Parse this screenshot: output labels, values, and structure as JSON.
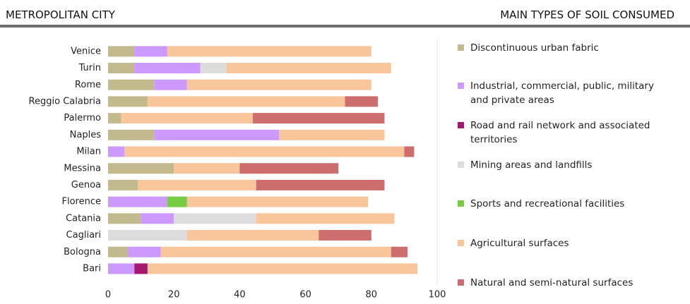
{
  "header": {
    "left": "METROPOLITAN CITY",
    "right": "MAIN TYPES OF SOIL CONSUMED"
  },
  "chart_data": {
    "type": "stacked-bar-horizontal",
    "categories": [
      "Venice",
      "Turin",
      "Rome",
      "Reggio Calabria",
      "Palermo",
      "Naples",
      "Milan",
      "Messina",
      "Genoa",
      "Florence",
      "Catania",
      "Cagliari",
      "Bologna",
      "Bari"
    ],
    "series": [
      {
        "name": "Discontinuous urban fabric",
        "color": "#c2b98c",
        "values": [
          8,
          8,
          14,
          12,
          4,
          14,
          0,
          20,
          9,
          0,
          10,
          0,
          6,
          0
        ]
      },
      {
        "name": "Industrial, commercial, public, military and private areas",
        "color": "#cc99ff",
        "values": [
          10,
          20,
          10,
          0,
          0,
          38,
          5,
          0,
          0,
          18,
          10,
          0,
          10,
          8
        ]
      },
      {
        "name": "Road and rail network and associated territories",
        "color": "#a3176e",
        "values": [
          0,
          0,
          0,
          0,
          0,
          0,
          0,
          0,
          0,
          0,
          0,
          0,
          0,
          4
        ]
      },
      {
        "name": "Mining areas and landfills",
        "color": "#dcdcdc",
        "values": [
          0,
          8,
          0,
          0,
          0,
          0,
          0,
          0,
          0,
          0,
          25,
          24,
          0,
          0
        ]
      },
      {
        "name": "Sports and recreational facilities",
        "color": "#78cc44",
        "values": [
          0,
          0,
          0,
          0,
          0,
          0,
          0,
          0,
          0,
          6,
          0,
          0,
          0,
          0
        ]
      },
      {
        "name": "Agricultural surfaces",
        "color": "#f9c59a",
        "values": [
          62,
          50,
          56,
          60,
          40,
          32,
          85,
          20,
          36,
          55,
          42,
          40,
          70,
          82
        ]
      },
      {
        "name": "Natural and semi-natural surfaces",
        "color": "#cd6d6d",
        "values": [
          0,
          0,
          0,
          10,
          40,
          0,
          3,
          30,
          39,
          0,
          0,
          16,
          5,
          0
        ]
      }
    ],
    "xlim": [
      0,
      100
    ],
    "xticks": [
      0,
      20,
      40,
      60,
      80,
      100
    ],
    "grid": false
  }
}
